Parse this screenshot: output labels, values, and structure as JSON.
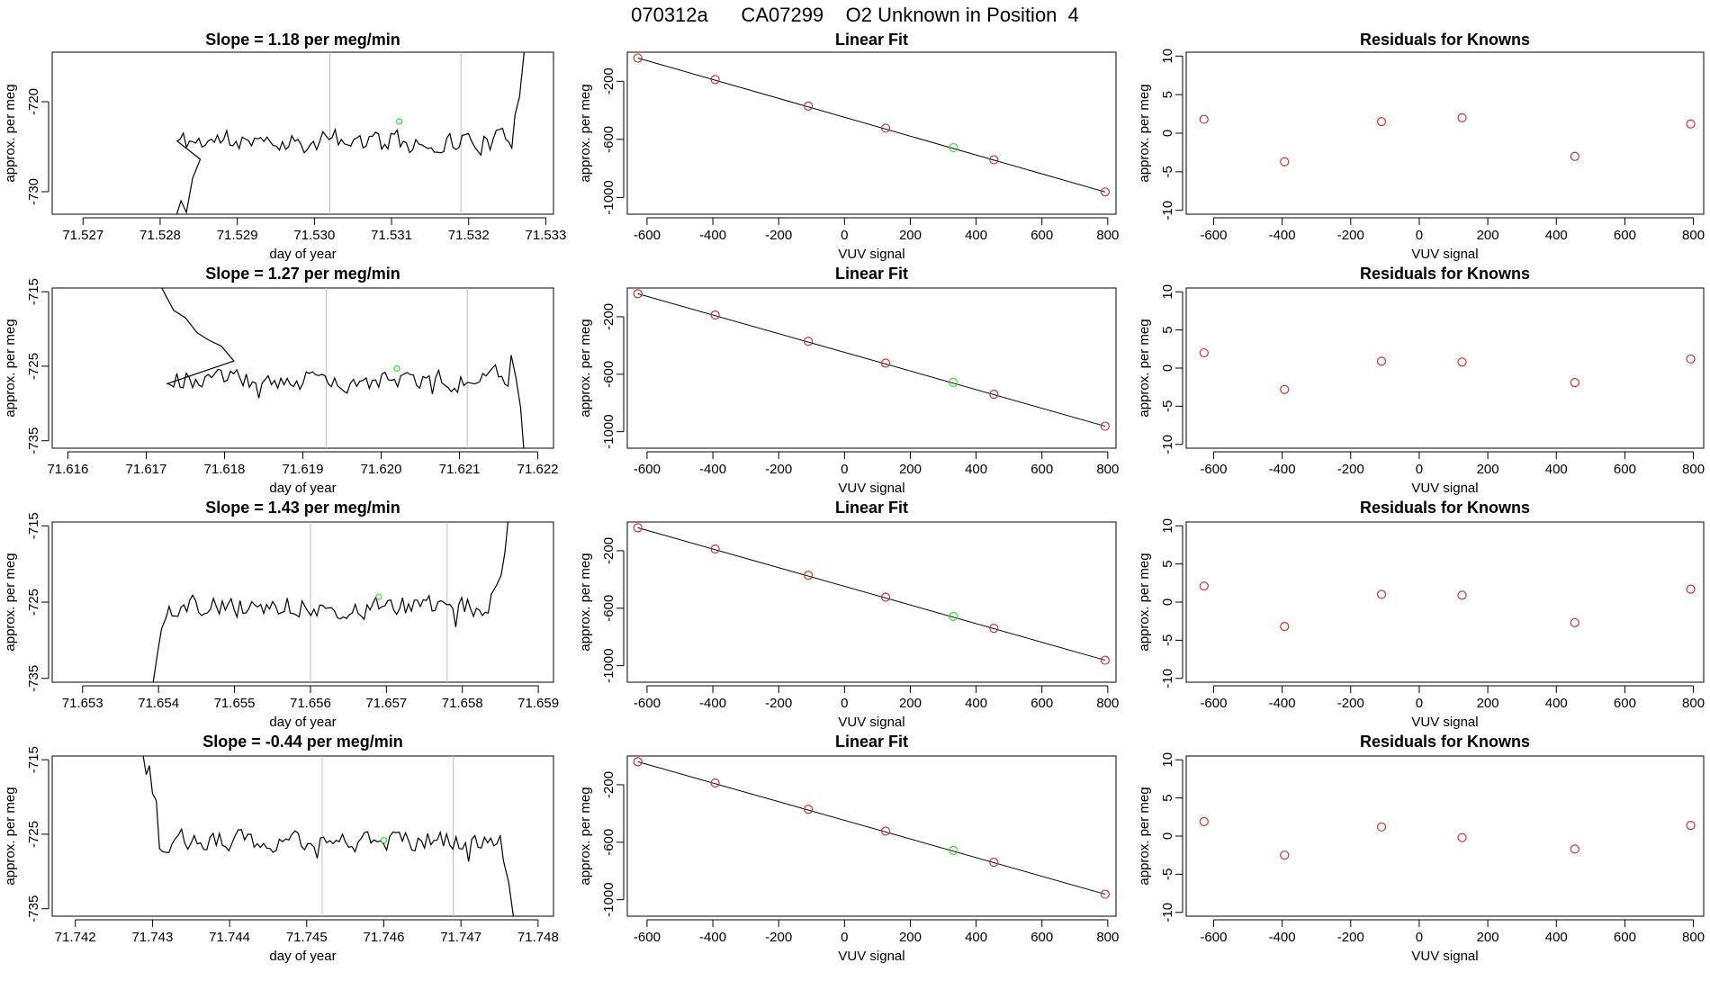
{
  "header": {
    "title": "070312a      CA07299    O2 Unknown in Position  4"
  },
  "colors": {
    "axis": "#000000",
    "line": "#000000",
    "known_point": "#cd3333",
    "unknown_point": "#33dd33",
    "guide": "#bebebe"
  },
  "chart_data": [
    {
      "id": "ts1",
      "type": "line",
      "title": "Slope =  1.18  per meg/min",
      "xlabel": "day of year",
      "ylabel": "approx. per meg",
      "xlim": [
        71.5266,
        71.5331
      ],
      "ylim": [
        -732.5,
        -714.5
      ],
      "xticks": [
        "71.527",
        "71.528",
        "71.529",
        "71.530",
        "71.531",
        "71.532",
        "71.533"
      ],
      "yticks": [
        "-720",
        "-730"
      ],
      "vlines": [
        71.5302,
        71.5319
      ],
      "green_point": [
        71.5311,
        -722.2
      ],
      "start": 71.52818,
      "end": 71.52852,
      "base": -724.4,
      "amplitude": 1.8,
      "seed": 11,
      "values_lead": [
        [
          71.52818,
          -733.5
        ],
        [
          71.52827,
          -731
        ],
        [
          71.52834,
          -732.3
        ],
        [
          71.52842,
          -728.5
        ],
        [
          71.52852,
          -726.4
        ]
      ],
      "values_tail": [
        [
          71.5326,
          -721.5
        ],
        [
          71.53266,
          -719.4
        ],
        [
          71.53272,
          -714.5
        ]
      ]
    },
    {
      "id": "lf1",
      "type": "scatter",
      "title": "Linear Fit",
      "xlabel": "VUV signal",
      "ylabel": "approx. per meg",
      "xlim": [
        -660,
        825
      ],
      "ylim": [
        -1115,
        0
      ],
      "xticks": [
        "-600",
        "-400",
        "-200",
        "0",
        "200",
        "400",
        "600",
        "800"
      ],
      "yticks": [
        "-200",
        "-600",
        "-1000"
      ],
      "points": [
        [
          -628,
          -40
        ],
        [
          -393,
          -188
        ],
        [
          -110,
          -371
        ],
        [
          125,
          -523
        ],
        [
          454,
          -740
        ],
        [
          792,
          -962
        ]
      ],
      "unknown": [
        331,
        -657
      ],
      "fit_line": [
        [
          -628,
          -40
        ],
        [
          792,
          -962
        ]
      ]
    },
    {
      "id": "rs1",
      "type": "scatter",
      "title": "Residuals for Knowns",
      "xlabel": "VUV signal",
      "ylabel": "approx. per meg",
      "xlim": [
        -680,
        830
      ],
      "ylim": [
        -10.5,
        10.5
      ],
      "xticks": [
        "-600",
        "-400",
        "-200",
        "0",
        "200",
        "400",
        "600",
        "800"
      ],
      "yticks": [
        "10",
        "5",
        "0",
        "-5",
        "-10"
      ],
      "points": [
        [
          -628,
          1.8
        ],
        [
          -393,
          -3.7
        ],
        [
          -110,
          1.5
        ],
        [
          125,
          2.0
        ],
        [
          454,
          -3.0
        ],
        [
          792,
          1.2
        ]
      ]
    },
    {
      "id": "ts2",
      "type": "line",
      "title": "Slope =  1.27  per meg/min",
      "xlabel": "day of year",
      "ylabel": "approx. per meg",
      "xlim": [
        71.6158,
        71.6222
      ],
      "ylim": [
        -736,
        -714.5
      ],
      "xticks": [
        "71.616",
        "71.617",
        "71.618",
        "71.619",
        "71.620",
        "71.621",
        "71.622"
      ],
      "yticks": [
        "-715",
        "-725",
        "-735"
      ],
      "vlines": [
        71.6193,
        71.6211
      ],
      "green_point": [
        71.6202,
        -725.3
      ],
      "start": 71.61723,
      "end": 71.61812,
      "base": -726.8,
      "amplitude": 2.0,
      "seed": 23,
      "values_lead": [
        [
          71.6172,
          -714.5
        ],
        [
          71.61735,
          -717.5
        ],
        [
          71.6175,
          -718.5
        ],
        [
          71.61765,
          -720.5
        ],
        [
          71.6178,
          -721.5
        ],
        [
          71.61796,
          -722.3
        ],
        [
          71.61812,
          -724.3
        ]
      ],
      "values_tail": [
        [
          71.62166,
          -723.5
        ],
        [
          71.62172,
          -726.5
        ],
        [
          71.62178,
          -730.5
        ],
        [
          71.62182,
          -736
        ]
      ]
    },
    {
      "id": "lf2",
      "type": "scatter",
      "title": "Linear Fit",
      "xlabel": "VUV signal",
      "ylabel": "approx. per meg",
      "xlim": [
        -660,
        825
      ],
      "ylim": [
        -1115,
        0
      ],
      "xticks": [
        "-600",
        "-400",
        "-200",
        "0",
        "200",
        "400",
        "600",
        "800"
      ],
      "yticks": [
        "-200",
        "-600",
        "-1000"
      ],
      "points": [
        [
          -628,
          -40
        ],
        [
          -393,
          -188
        ],
        [
          -110,
          -371
        ],
        [
          125,
          -523
        ],
        [
          454,
          -740
        ],
        [
          792,
          -962
        ]
      ],
      "unknown": [
        331,
        -657
      ],
      "fit_line": [
        [
          -628,
          -40
        ],
        [
          792,
          -962
        ]
      ]
    },
    {
      "id": "rs2",
      "type": "scatter",
      "title": "Residuals for Knowns",
      "xlabel": "VUV signal",
      "ylabel": "approx. per meg",
      "xlim": [
        -680,
        830
      ],
      "ylim": [
        -10.5,
        10.5
      ],
      "xticks": [
        "-600",
        "-400",
        "-200",
        "0",
        "200",
        "400",
        "600",
        "800"
      ],
      "yticks": [
        "10",
        "5",
        "0",
        "-5",
        "-10"
      ],
      "points": [
        [
          -628,
          2.0
        ],
        [
          -393,
          -2.8
        ],
        [
          -110,
          0.9
        ],
        [
          125,
          0.8
        ],
        [
          454,
          -1.9
        ],
        [
          792,
          1.2
        ]
      ]
    },
    {
      "id": "ts3",
      "type": "line",
      "title": "Slope =  1.43  per meg/min",
      "xlabel": "day of year",
      "ylabel": "approx. per meg",
      "xlim": [
        71.6526,
        71.6592
      ],
      "ylim": [
        -735.5,
        -714.5
      ],
      "xticks": [
        "71.653",
        "71.654",
        "71.655",
        "71.656",
        "71.657",
        "71.658",
        "71.659"
      ],
      "yticks": [
        "-715",
        "-725",
        "-735"
      ],
      "vlines": [
        71.656,
        71.6578
      ],
      "green_point": [
        71.6569,
        -724.3
      ],
      "start": 71.6541,
      "end": 71.65838,
      "base": -725.6,
      "amplitude": 2.0,
      "seed": 37,
      "values_lead": [
        [
          71.65393,
          -735.5
        ],
        [
          71.65399,
          -731.5
        ],
        [
          71.65404,
          -728.5
        ],
        [
          71.6541,
          -727.0
        ]
      ],
      "values_tail": [
        [
          71.65838,
          -724.0
        ],
        [
          71.65845,
          -722.8
        ],
        [
          71.65851,
          -721.5
        ],
        [
          71.65856,
          -718.5
        ],
        [
          71.6586,
          -714.5
        ]
      ]
    },
    {
      "id": "lf3",
      "type": "scatter",
      "title": "Linear Fit",
      "xlabel": "VUV signal",
      "ylabel": "approx. per meg",
      "xlim": [
        -660,
        825
      ],
      "ylim": [
        -1115,
        0
      ],
      "xticks": [
        "-600",
        "-400",
        "-200",
        "0",
        "200",
        "400",
        "600",
        "800"
      ],
      "yticks": [
        "-200",
        "-600",
        "-1000"
      ],
      "points": [
        [
          -628,
          -40
        ],
        [
          -393,
          -188
        ],
        [
          -110,
          -371
        ],
        [
          125,
          -523
        ],
        [
          454,
          -740
        ],
        [
          792,
          -962
        ]
      ],
      "unknown": [
        331,
        -657
      ],
      "fit_line": [
        [
          -628,
          -40
        ],
        [
          792,
          -962
        ]
      ]
    },
    {
      "id": "rs3",
      "type": "scatter",
      "title": "Residuals for Knowns",
      "xlabel": "VUV signal",
      "ylabel": "approx. per meg",
      "xlim": [
        -680,
        830
      ],
      "ylim": [
        -10.5,
        10.5
      ],
      "xticks": [
        "-600",
        "-400",
        "-200",
        "0",
        "200",
        "400",
        "600",
        "800"
      ],
      "yticks": [
        "10",
        "5",
        "0",
        "-5",
        "-10"
      ],
      "points": [
        [
          -628,
          2.1
        ],
        [
          -393,
          -3.2
        ],
        [
          -110,
          1.0
        ],
        [
          125,
          0.9
        ],
        [
          454,
          -2.7
        ],
        [
          792,
          1.7
        ]
      ]
    },
    {
      "id": "ts4",
      "type": "line",
      "title": "Slope =  -0.44  per meg/min",
      "xlabel": "day of year",
      "ylabel": "approx. per meg",
      "xlim": [
        71.7417,
        71.7482
      ],
      "ylim": [
        -736,
        -714.5
      ],
      "xticks": [
        "71.742",
        "71.743",
        "71.744",
        "71.745",
        "71.746",
        "71.747",
        "71.748"
      ],
      "yticks": [
        "-715",
        "-725",
        "-735"
      ],
      "vlines": [
        71.7452,
        71.7469
      ],
      "green_point": [
        71.746,
        -725.8
      ],
      "start": 71.74305,
      "end": 71.74748,
      "base": -725.8,
      "amplitude": 2.0,
      "seed": 53,
      "values_lead": [
        [
          71.74288,
          -714.5
        ],
        [
          71.74292,
          -717.0
        ],
        [
          71.74296,
          -715.8
        ],
        [
          71.743,
          -719.5
        ],
        [
          71.74305,
          -720.5
        ]
      ],
      "values_tail": [
        [
          71.74755,
          -728.5
        ],
        [
          71.74762,
          -731.5
        ],
        [
          71.74768,
          -736
        ]
      ]
    },
    {
      "id": "lf4",
      "type": "scatter",
      "title": "Linear Fit",
      "xlabel": "VUV signal",
      "ylabel": "approx. per meg",
      "xlim": [
        -660,
        825
      ],
      "ylim": [
        -1115,
        0
      ],
      "xticks": [
        "-600",
        "-400",
        "-200",
        "0",
        "200",
        "400",
        "600",
        "800"
      ],
      "yticks": [
        "-200",
        "-600",
        "-1000"
      ],
      "points": [
        [
          -628,
          -40
        ],
        [
          -393,
          -188
        ],
        [
          -110,
          -371
        ],
        [
          125,
          -523
        ],
        [
          454,
          -740
        ],
        [
          792,
          -962
        ]
      ],
      "unknown": [
        331,
        -657
      ],
      "fit_line": [
        [
          -628,
          -40
        ],
        [
          792,
          -962
        ]
      ]
    },
    {
      "id": "rs4",
      "type": "scatter",
      "title": "Residuals for Knowns",
      "xlabel": "VUV signal",
      "ylabel": "approx. per meg",
      "xlim": [
        -680,
        830
      ],
      "ylim": [
        -10.5,
        10.5
      ],
      "xticks": [
        "-600",
        "-400",
        "-200",
        "0",
        "200",
        "400",
        "600",
        "800"
      ],
      "yticks": [
        "10",
        "5",
        "0",
        "-5",
        "-10"
      ],
      "points": [
        [
          -628,
          1.9
        ],
        [
          -393,
          -2.5
        ],
        [
          -110,
          1.2
        ],
        [
          125,
          -0.2
        ],
        [
          454,
          -1.7
        ],
        [
          792,
          1.4
        ]
      ]
    }
  ]
}
